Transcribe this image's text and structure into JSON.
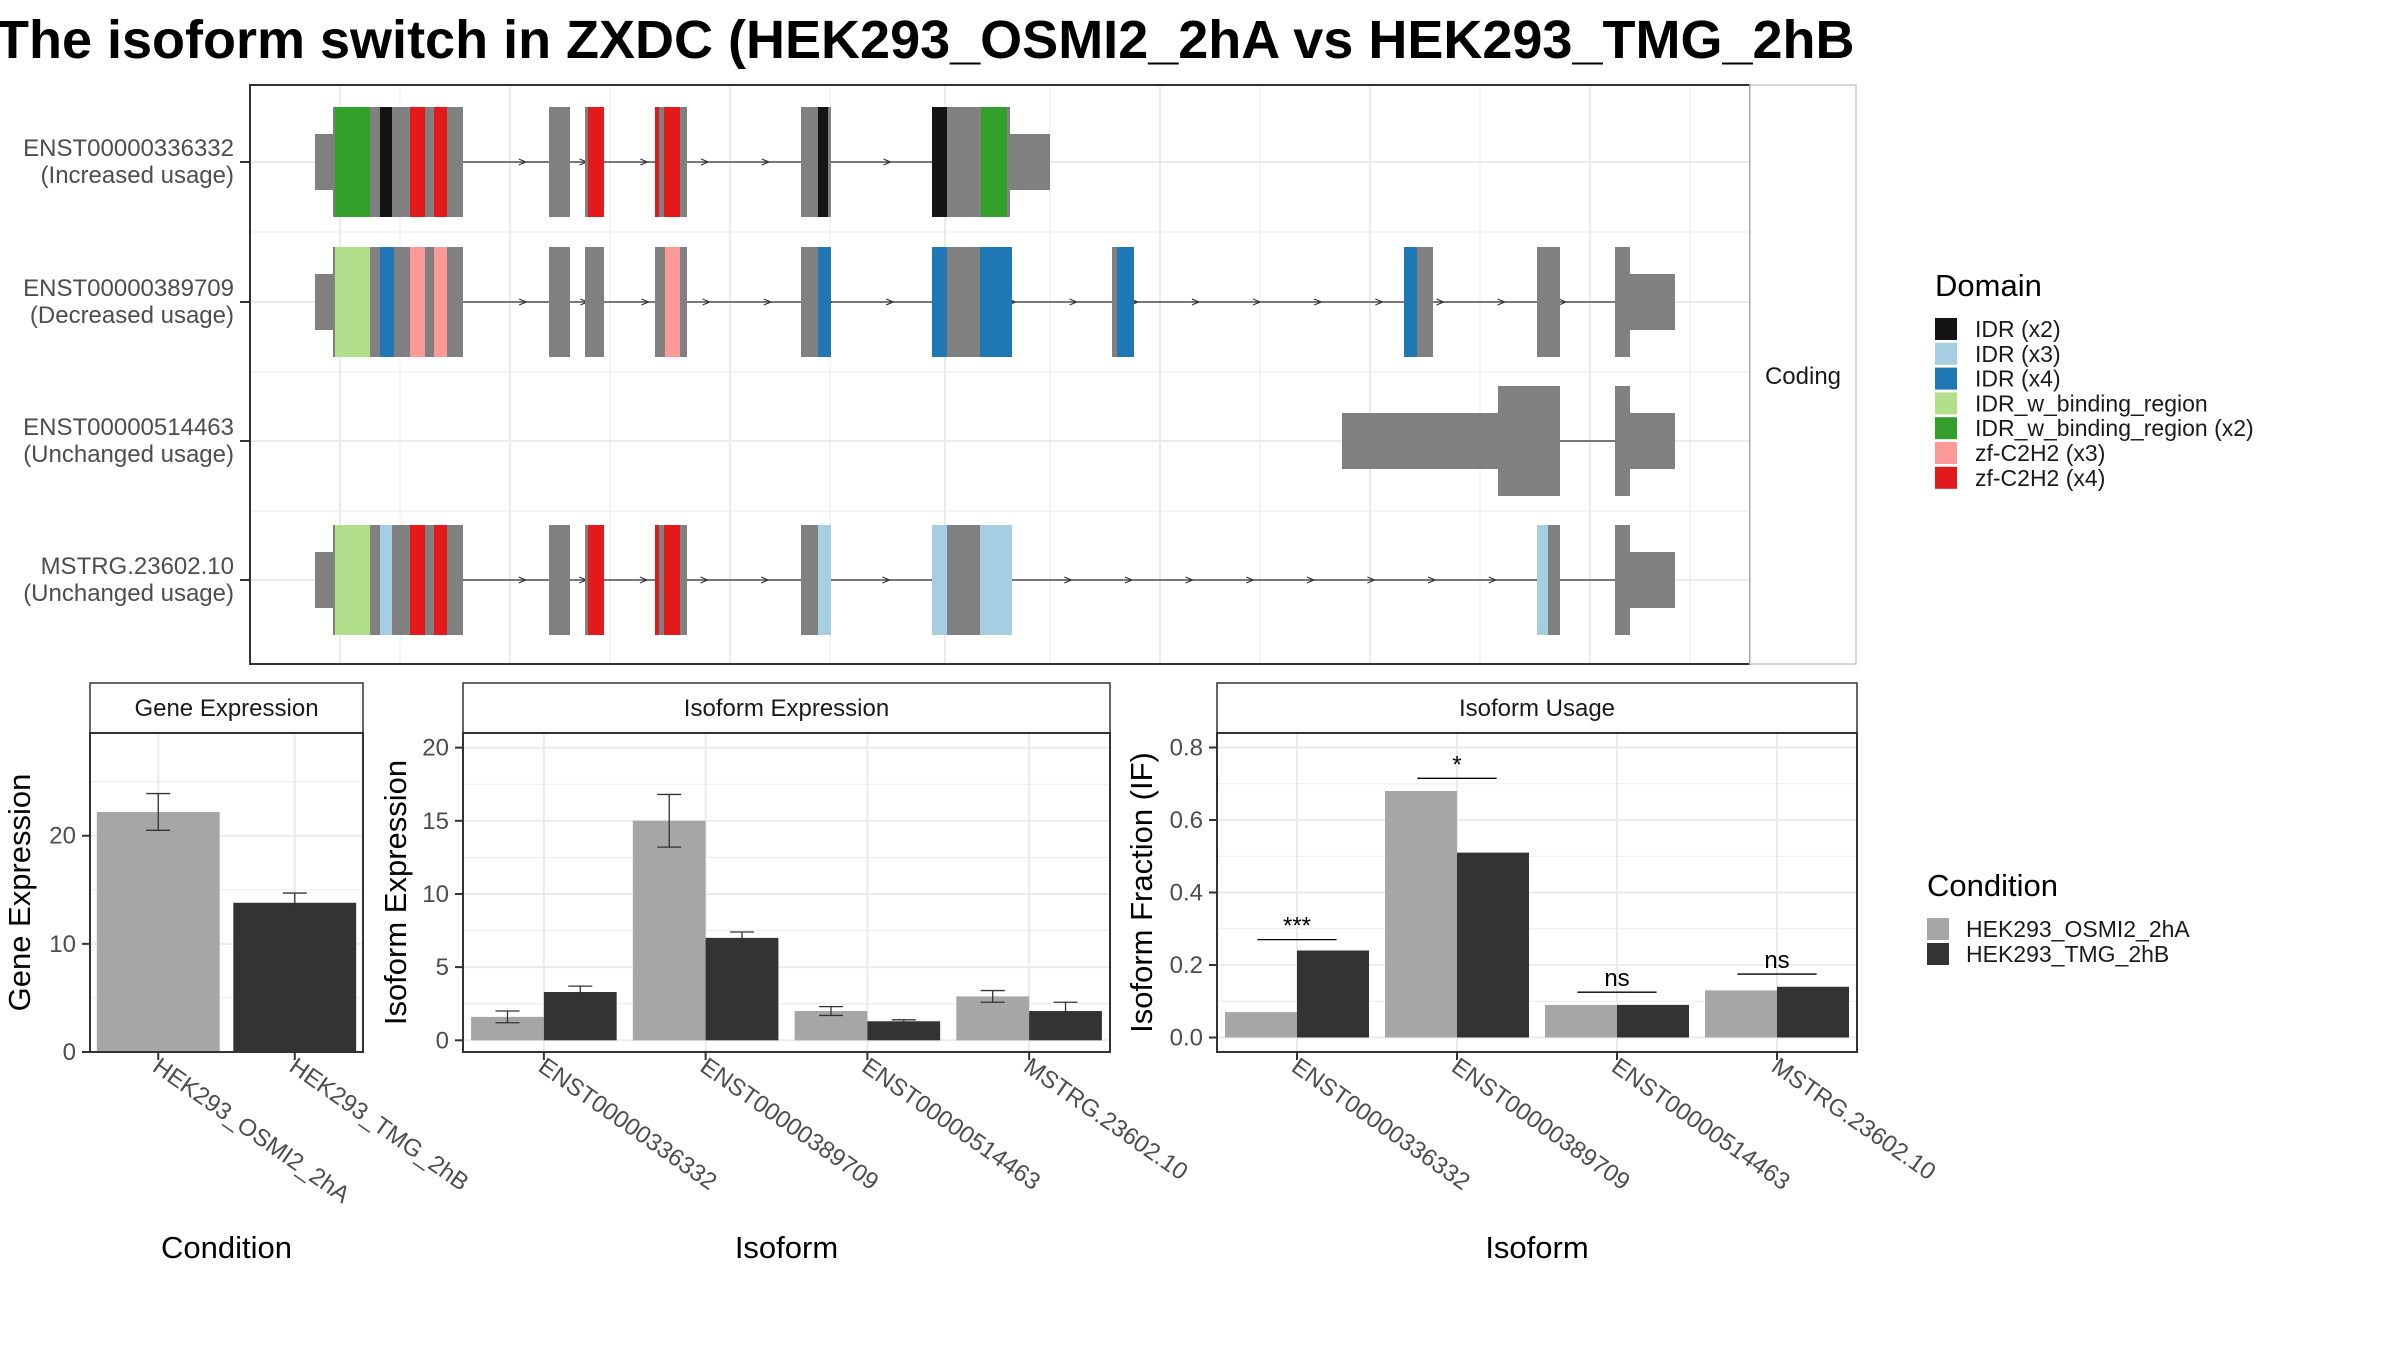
{
  "title": "The isoform switch in ZXDC (HEK293_OSMI2_2hA vs HEK293_TMG_2hB",
  "colors": {
    "exon": "#808080",
    "condition_a": "#a6a6a6",
    "condition_b": "#333333",
    "grid": "#ebebeb",
    "IDR (x2)": "#141414",
    "IDR (x3)": "#a6cee3",
    "IDR (x4)": "#1f78b4",
    "IDR_w_binding_region": "#b2df8a",
    "IDR_w_binding_region (x2)": "#33a02c",
    "zf-C2H2 (x3)": "#fb9a99",
    "zf-C2H2 (x4)": "#e31a1c"
  },
  "structure": {
    "facet_label": "Coding",
    "isoforms": [
      {
        "id": "ENST00000336332",
        "label_name": "ENST00000336332",
        "label_usage": "(Increased usage)"
      },
      {
        "id": "ENST00000389709",
        "label_name": "ENST00000389709",
        "label_usage": "(Decreased usage)"
      },
      {
        "id": "ENST00000514463",
        "label_name": "ENST00000514463",
        "label_usage": "(Unchanged usage)"
      },
      {
        "id": "MSTRG.23602.10",
        "label_name": "MSTRG.23602.10",
        "label_usage": "(Unchanged usage)"
      }
    ]
  },
  "legend_domain": {
    "title": "Domain",
    "items": [
      "IDR (x2)",
      "IDR (x3)",
      "IDR (x4)",
      "IDR_w_binding_region",
      "IDR_w_binding_region (x2)",
      "zf-C2H2 (x3)",
      "zf-C2H2 (x4)"
    ]
  },
  "legend_condition": {
    "title": "Condition",
    "items": [
      "HEK293_OSMI2_2hA",
      "HEK293_TMG_2hB"
    ]
  },
  "chart_data": [
    {
      "type": "bar",
      "title": "Gene Expression",
      "xlabel": "Condition",
      "ylabel": "Gene Expression",
      "categories": [
        "HEK293_OSMI2_2hA",
        "HEK293_TMG_2hB"
      ],
      "values": [
        22.2,
        13.8
      ],
      "error_low": [
        20.5,
        12.9
      ],
      "error_high": [
        23.9,
        14.7
      ],
      "ylim": [
        0,
        29.5
      ],
      "yticks": [
        0,
        10,
        20
      ]
    },
    {
      "type": "bar",
      "title": "Isoform Expression",
      "xlabel": "Isoform",
      "ylabel": "Isoform Expression",
      "categories": [
        "ENST00000336332",
        "ENST00000389709",
        "ENST00000514463",
        "MSTRG.23602.10"
      ],
      "series": [
        {
          "name": "HEK293_OSMI2_2hA",
          "values": [
            1.6,
            15.0,
            2.0,
            3.0
          ],
          "error_low": [
            1.2,
            13.2,
            1.7,
            2.6
          ],
          "error_high": [
            2.0,
            16.8,
            2.3,
            3.4
          ]
        },
        {
          "name": "HEK293_TMG_2hB",
          "values": [
            3.3,
            7.0,
            1.3,
            2.0
          ],
          "error_low": [
            2.9,
            6.6,
            1.2,
            1.4
          ],
          "error_high": [
            3.7,
            7.4,
            1.4,
            2.6
          ]
        }
      ],
      "ylim": [
        -0.8,
        21
      ],
      "yticks": [
        0,
        5,
        10,
        15,
        20
      ]
    },
    {
      "type": "bar",
      "title": "Isoform Usage",
      "xlabel": "Isoform",
      "ylabel": "Isoform Fraction (IF)",
      "categories": [
        "ENST00000336332",
        "ENST00000389709",
        "ENST00000514463",
        "MSTRG.23602.10"
      ],
      "series": [
        {
          "name": "HEK293_OSMI2_2hA",
          "values": [
            0.07,
            0.68,
            0.09,
            0.13
          ]
        },
        {
          "name": "HEK293_TMG_2hB",
          "values": [
            0.24,
            0.51,
            0.09,
            0.14
          ]
        }
      ],
      "significance": [
        "***",
        "*",
        "ns",
        "ns"
      ],
      "significance_height": [
        0.27,
        0.715,
        0.125,
        0.175
      ],
      "ylim": [
        -0.04,
        0.84
      ],
      "yticks": [
        0.0,
        0.2,
        0.4,
        0.6,
        0.8
      ],
      "ytick_labels": [
        "0.0",
        "0.2",
        "0.4",
        "0.6",
        "0.8"
      ]
    }
  ]
}
